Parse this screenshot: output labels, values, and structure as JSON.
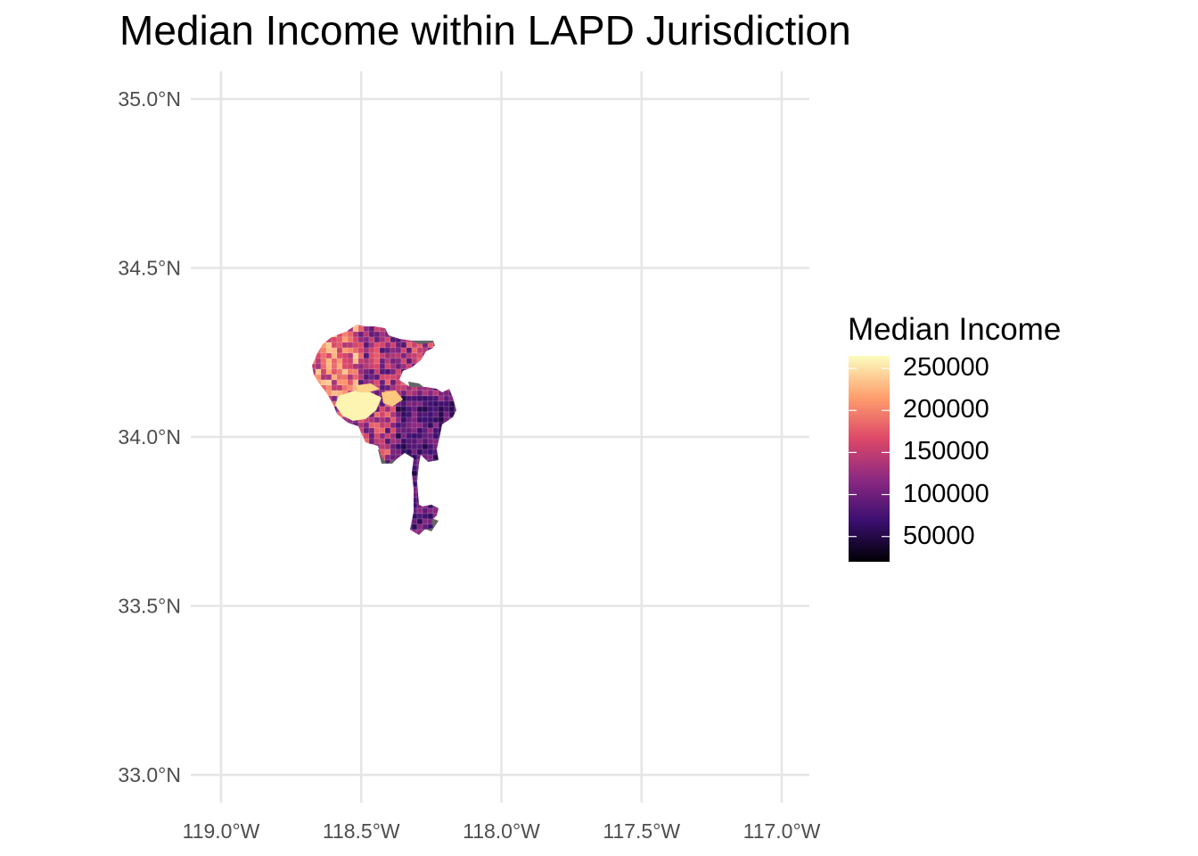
{
  "map": {
    "title": "Median Income within LAPD Jurisdiction",
    "y_ticks": [
      {
        "value": 35.0,
        "label": "35.0°N"
      },
      {
        "value": 34.5,
        "label": "34.5°N"
      },
      {
        "value": 34.0,
        "label": "34.0°N"
      },
      {
        "value": 33.5,
        "label": "33.5°N"
      },
      {
        "value": 33.0,
        "label": "33.0°N"
      }
    ],
    "x_ticks": [
      {
        "value": -119.0,
        "label": "119.0°W"
      },
      {
        "value": -118.5,
        "label": "118.5°W"
      },
      {
        "value": -118.0,
        "label": "118.0°W"
      },
      {
        "value": -117.5,
        "label": "117.5°W"
      },
      {
        "value": -117.0,
        "label": "117.0°W"
      }
    ],
    "lon_range": [
      -119.05,
      -116.9
    ],
    "lat_range": [
      32.92,
      35.08
    ],
    "na_color": "#666666",
    "grid_color": "#e5e5e5",
    "palette": "magma"
  },
  "legend": {
    "title": "Median Income",
    "min": 20000,
    "max": 265000,
    "breaks": [
      {
        "value": 250000,
        "label": "250000"
      },
      {
        "value": 200000,
        "label": "200000"
      },
      {
        "value": 150000,
        "label": "150000"
      },
      {
        "value": 100000,
        "label": "100000"
      },
      {
        "value": 50000,
        "label": "50000"
      }
    ],
    "colors": [
      "#000004",
      "#3b0f70",
      "#8c2981",
      "#de4968",
      "#fe9f6d",
      "#fcfdbf"
    ]
  }
}
